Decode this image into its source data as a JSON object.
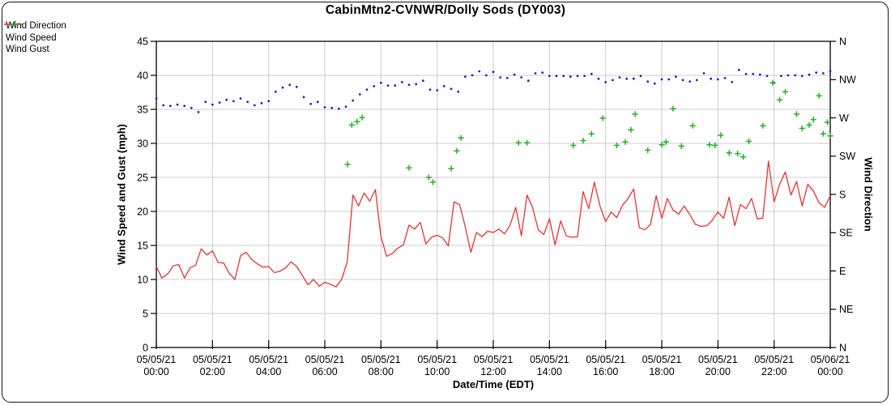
{
  "chart_data": {
    "type": "line+scatter",
    "title": "CabinMtn2-CVNWR/Dolly Sods (DY003)",
    "xlabel": "Date/Time (EDT)",
    "ylabel_left": "Wind Speed and Gust (mph)",
    "ylabel_right": "Wind Direction",
    "x_unit": "hours_from_start",
    "xlim": [
      0,
      24
    ],
    "ylim_left": [
      0,
      45
    ],
    "y_left_ticks": [
      0,
      5,
      10,
      15,
      20,
      25,
      30,
      35,
      40,
      45
    ],
    "y_right_ticks_top_to_bottom": [
      "N",
      "NW",
      "W",
      "SW",
      "S",
      "SE",
      "E",
      "NE",
      "N"
    ],
    "grid": true,
    "grid_color": "#cdcdcd",
    "x_ticks": [
      {
        "date": "05/05/21",
        "time": "00:00"
      },
      {
        "date": "05/05/21",
        "time": "02:00"
      },
      {
        "date": "05/05/21",
        "time": "04:00"
      },
      {
        "date": "05/05/21",
        "time": "06:00"
      },
      {
        "date": "05/05/21",
        "time": "08:00"
      },
      {
        "date": "05/05/21",
        "time": "10:00"
      },
      {
        "date": "05/05/21",
        "time": "12:00"
      },
      {
        "date": "05/05/21",
        "time": "14:00"
      },
      {
        "date": "05/05/21",
        "time": "16:00"
      },
      {
        "date": "05/05/21",
        "time": "18:00"
      },
      {
        "date": "05/05/21",
        "time": "20:00"
      },
      {
        "date": "05/05/21",
        "time": "22:00"
      },
      {
        "date": "05/06/21",
        "time": "00:00"
      }
    ],
    "series": [
      {
        "name": "Wind Direction",
        "marker": "dot",
        "color": "#2121cb",
        "axis": "right",
        "x_start": 0,
        "x_step": 0.25,
        "values": [
          36.6,
          35.6,
          35.5,
          35.7,
          35.5,
          35.2,
          34.6,
          36.1,
          35.7,
          36.0,
          36.4,
          36.2,
          36.6,
          36.1,
          35.6,
          35.9,
          36.2,
          37.6,
          38.2,
          38.6,
          38.3,
          36.8,
          35.8,
          36.1,
          35.3,
          35.2,
          35.1,
          35.4,
          36.3,
          37.2,
          37.9,
          38.4,
          38.9,
          38.5,
          38.5,
          39.0,
          38.6,
          38.7,
          39.2,
          37.9,
          37.8,
          38.4,
          38.0,
          37.6,
          39.8,
          40.0,
          40.6,
          40.0,
          40.5,
          39.7,
          39.6,
          40.1,
          39.7,
          39.2,
          40.3,
          40.4,
          39.9,
          39.9,
          39.9,
          39.8,
          39.9,
          39.9,
          40.2,
          39.5,
          39.0,
          39.3,
          39.7,
          39.5,
          39.5,
          39.9,
          39.1,
          38.8,
          39.4,
          39.4,
          39.8,
          39.3,
          39.1,
          39.3,
          40.3,
          39.5,
          39.4,
          39.6,
          39.0,
          40.8,
          40.2,
          40.2,
          40.1,
          39.9,
          38.9,
          39.9,
          40.0,
          40.0,
          39.9,
          40.1,
          40.4,
          40.3,
          40.6
        ]
      },
      {
        "name": "Wind Speed",
        "marker": "line",
        "color": "#ea3230",
        "axis": "left",
        "x_start": 0,
        "x_step": 0.2,
        "values": [
          11.9,
          10.2,
          10.8,
          12.0,
          12.2,
          10.2,
          11.7,
          12.1,
          14.5,
          13.6,
          14.2,
          12.5,
          12.4,
          10.9,
          10.0,
          13.5,
          14.0,
          12.9,
          12.3,
          11.8,
          11.9,
          11.0,
          11.2,
          11.7,
          12.6,
          11.9,
          10.6,
          9.2,
          10.0,
          9.0,
          9.6,
          9.3,
          8.9,
          10.0,
          12.6,
          22.4,
          20.8,
          22.7,
          21.5,
          23.2,
          16.3,
          13.4,
          13.8,
          14.6,
          15.1,
          18.0,
          17.4,
          18.4,
          15.2,
          16.2,
          16.5,
          16.1,
          14.9,
          21.4,
          21.0,
          17.8,
          14.0,
          16.9,
          16.3,
          17.1,
          16.9,
          17.4,
          16.7,
          18.0,
          20.6,
          16.4,
          22.4,
          20.6,
          17.3,
          16.6,
          18.9,
          15.1,
          18.6,
          16.4,
          16.2,
          16.3,
          22.9,
          20.4,
          24.3,
          20.8,
          18.5,
          19.9,
          19.1,
          20.9,
          21.9,
          23.3,
          17.6,
          17.3,
          18.1,
          22.3,
          19.0,
          21.9,
          20.2,
          19.6,
          20.8,
          19.5,
          18.1,
          17.8,
          17.9,
          18.7,
          19.9,
          19.0,
          22.1,
          17.9,
          21.0,
          20.4,
          21.9,
          18.9,
          19.0,
          27.4,
          21.4,
          24.0,
          25.8,
          22.4,
          24.4,
          20.8,
          24.0,
          23.0,
          21.3,
          20.6,
          22.3
        ]
      },
      {
        "name": "Wind Gust",
        "marker": "plus",
        "color": "#22b422",
        "axis": "left",
        "x": [
          6.81,
          6.96,
          7.15,
          7.33,
          9.0,
          9.7,
          9.85,
          10.5,
          10.7,
          10.85,
          12.9,
          13.2,
          14.85,
          15.2,
          15.5,
          15.9,
          16.4,
          16.7,
          16.9,
          17.05,
          17.5,
          18.0,
          18.15,
          18.4,
          18.7,
          19.1,
          19.7,
          19.9,
          20.1,
          20.4,
          20.7,
          20.9,
          21.1,
          21.6,
          21.95,
          22.2,
          22.4,
          22.8,
          23.0,
          23.25,
          23.4,
          23.6,
          23.75,
          23.9,
          24.0
        ],
        "values": [
          26.9,
          32.7,
          33.2,
          33.8,
          26.4,
          25.0,
          24.3,
          26.3,
          28.9,
          30.8,
          30.1,
          30.1,
          29.7,
          30.4,
          31.4,
          33.7,
          29.7,
          30.2,
          32.0,
          34.3,
          29.0,
          29.8,
          30.2,
          35.1,
          29.6,
          32.6,
          29.8,
          29.7,
          31.2,
          28.6,
          28.5,
          28.0,
          30.3,
          32.6,
          38.9,
          36.4,
          37.6,
          34.3,
          32.2,
          32.7,
          33.5,
          37.0,
          31.4,
          33.1,
          31.1
        ]
      }
    ]
  }
}
